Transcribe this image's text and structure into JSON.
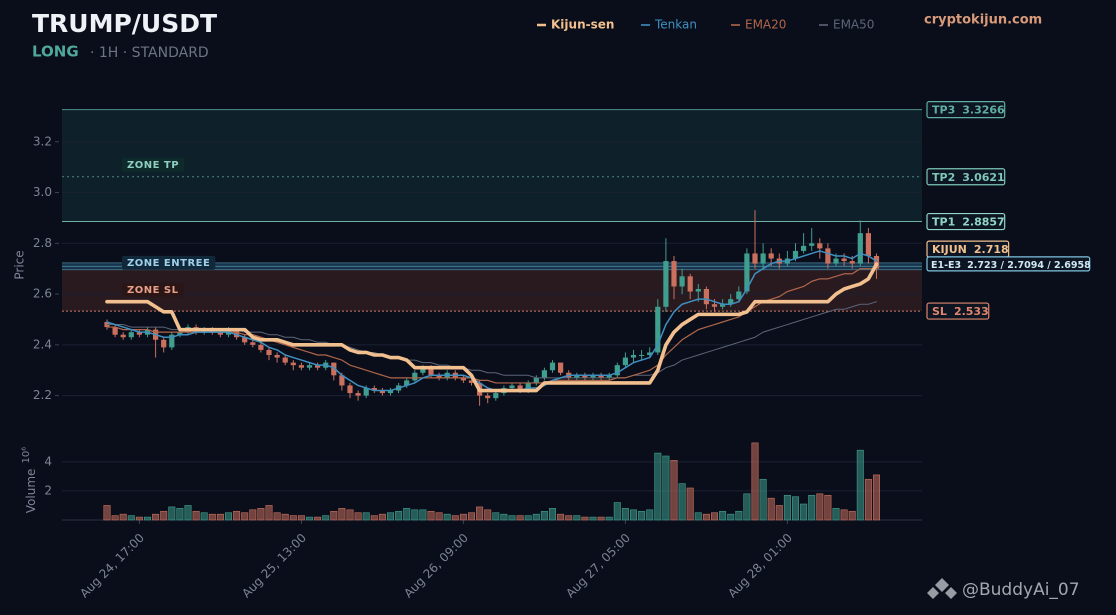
{
  "chart_data": {
    "type": "candlestick",
    "title": "TRUMP/USDT",
    "side": "LONG",
    "meta": "· 1H · STANDARD",
    "source": "cryptokijun.com",
    "watermark": "@BuddyAi_07",
    "y_label": "Price",
    "ylim": [
      2.1,
      3.4
    ],
    "yticks": [
      2.2,
      2.4,
      2.6,
      2.8,
      {
        "value": 3,
        "label": "3.0"
      },
      3.2
    ],
    "grid": true,
    "up_color": "#3f9e8e",
    "down_color": "#c9705e",
    "categories": [
      null,
      null,
      null,
      null,
      "Aug 24, 17:00",
      null,
      null,
      null,
      null,
      null,
      null,
      null,
      null,
      null,
      null,
      null,
      null,
      null,
      null,
      null,
      null,
      null,
      null,
      null,
      "Aug 25, 13:00",
      null,
      null,
      null,
      null,
      null,
      null,
      null,
      null,
      null,
      null,
      null,
      null,
      null,
      null,
      null,
      null,
      null,
      null,
      null,
      "Aug 26, 09:00",
      null,
      null,
      null,
      null,
      null,
      null,
      null,
      null,
      null,
      null,
      null,
      null,
      null,
      null,
      null,
      null,
      null,
      null,
      null,
      "Aug 27, 05:00",
      null,
      null,
      null,
      null,
      null,
      null,
      null,
      null,
      null,
      null,
      null,
      null,
      null,
      null,
      null,
      null,
      null,
      null,
      null,
      "Aug 28, 01:00",
      null,
      null,
      null,
      null,
      null,
      null,
      null,
      null,
      null,
      null,
      null
    ],
    "candles": [
      [
        2.49,
        2.5,
        2.46,
        2.47
      ],
      [
        2.47,
        2.48,
        2.43,
        2.44
      ],
      [
        2.44,
        2.45,
        2.42,
        2.43
      ],
      [
        2.43,
        2.46,
        2.42,
        2.45
      ],
      [
        2.45,
        2.46,
        2.43,
        2.44
      ],
      [
        2.44,
        2.47,
        2.43,
        2.46
      ],
      [
        2.46,
        2.47,
        2.35,
        2.42
      ],
      [
        2.42,
        2.43,
        2.37,
        2.39
      ],
      [
        2.39,
        2.45,
        2.38,
        2.44
      ],
      [
        2.44,
        2.46,
        2.43,
        2.45
      ],
      [
        2.45,
        2.48,
        2.44,
        2.47
      ],
      [
        2.47,
        2.48,
        2.44,
        2.45
      ],
      [
        2.45,
        2.47,
        2.44,
        2.46
      ],
      [
        2.46,
        2.47,
        2.44,
        2.45
      ],
      [
        2.45,
        2.46,
        2.43,
        2.44
      ],
      [
        2.44,
        2.47,
        2.43,
        2.46
      ],
      [
        2.46,
        2.46,
        2.42,
        2.43
      ],
      [
        2.43,
        2.44,
        2.4,
        2.41
      ],
      [
        2.41,
        2.42,
        2.39,
        2.4
      ],
      [
        2.4,
        2.41,
        2.37,
        2.38
      ],
      [
        2.38,
        2.39,
        2.34,
        2.36
      ],
      [
        2.36,
        2.37,
        2.33,
        2.35
      ],
      [
        2.35,
        2.36,
        2.32,
        2.33
      ],
      [
        2.33,
        2.34,
        2.3,
        2.32
      ],
      [
        2.32,
        2.33,
        2.3,
        2.31
      ],
      [
        2.31,
        2.33,
        2.3,
        2.32
      ],
      [
        2.32,
        2.33,
        2.3,
        2.31
      ],
      [
        2.31,
        2.34,
        2.3,
        2.33
      ],
      [
        2.33,
        2.33,
        2.26,
        2.28
      ],
      [
        2.28,
        2.29,
        2.22,
        2.24
      ],
      [
        2.24,
        2.25,
        2.19,
        2.21
      ],
      [
        2.21,
        2.22,
        2.18,
        2.2
      ],
      [
        2.2,
        2.24,
        2.19,
        2.23
      ],
      [
        2.23,
        2.24,
        2.21,
        2.22
      ],
      [
        2.22,
        2.23,
        2.2,
        2.21
      ],
      [
        2.21,
        2.23,
        2.2,
        2.22
      ],
      [
        2.22,
        2.25,
        2.21,
        2.24
      ],
      [
        2.24,
        2.27,
        2.23,
        2.26
      ],
      [
        2.26,
        2.3,
        2.25,
        2.29
      ],
      [
        2.29,
        2.32,
        2.28,
        2.31
      ],
      [
        2.31,
        2.32,
        2.27,
        2.28
      ],
      [
        2.28,
        2.29,
        2.26,
        2.27
      ],
      [
        2.27,
        2.3,
        2.26,
        2.29
      ],
      [
        2.29,
        2.3,
        2.26,
        2.27
      ],
      [
        2.27,
        2.28,
        2.25,
        2.26
      ],
      [
        2.26,
        2.27,
        2.24,
        2.25
      ],
      [
        2.25,
        2.26,
        2.16,
        2.2
      ],
      [
        2.2,
        2.21,
        2.17,
        2.19
      ],
      [
        2.19,
        2.22,
        2.18,
        2.21
      ],
      [
        2.21,
        2.24,
        2.2,
        2.23
      ],
      [
        2.23,
        2.25,
        2.22,
        2.24
      ],
      [
        2.24,
        2.25,
        2.21,
        2.22
      ],
      [
        2.22,
        2.26,
        2.21,
        2.25
      ],
      [
        2.25,
        2.28,
        2.24,
        2.27
      ],
      [
        2.27,
        2.31,
        2.26,
        2.3
      ],
      [
        2.3,
        2.34,
        2.29,
        2.33
      ],
      [
        2.33,
        2.33,
        2.28,
        2.29
      ],
      [
        2.29,
        2.3,
        2.26,
        2.27
      ],
      [
        2.27,
        2.29,
        2.26,
        2.28
      ],
      [
        2.28,
        2.29,
        2.26,
        2.27
      ],
      [
        2.27,
        2.29,
        2.26,
        2.28
      ],
      [
        2.28,
        2.29,
        2.26,
        2.27
      ],
      [
        2.27,
        2.29,
        2.26,
        2.28
      ],
      [
        2.28,
        2.33,
        2.27,
        2.32
      ],
      [
        2.32,
        2.37,
        2.31,
        2.35
      ],
      [
        2.35,
        2.38,
        2.33,
        2.36
      ],
      [
        2.36,
        2.38,
        2.34,
        2.36
      ],
      [
        2.36,
        2.39,
        2.35,
        2.37
      ],
      [
        2.37,
        2.58,
        2.36,
        2.55
      ],
      [
        2.55,
        2.82,
        2.53,
        2.73
      ],
      [
        2.73,
        2.75,
        2.58,
        2.63
      ],
      [
        2.63,
        2.7,
        2.6,
        2.67
      ],
      [
        2.67,
        2.68,
        2.58,
        2.61
      ],
      [
        2.61,
        2.64,
        2.57,
        2.62
      ],
      [
        2.62,
        2.63,
        2.54,
        2.56
      ],
      [
        2.56,
        2.58,
        2.53,
        2.55
      ],
      [
        2.55,
        2.58,
        2.54,
        2.56
      ],
      [
        2.56,
        2.6,
        2.55,
        2.58
      ],
      [
        2.58,
        2.63,
        2.57,
        2.61
      ],
      [
        2.61,
        2.78,
        2.6,
        2.76
      ],
      [
        2.76,
        2.93,
        2.7,
        2.72
      ],
      [
        2.72,
        2.8,
        2.7,
        2.76
      ],
      [
        2.76,
        2.78,
        2.71,
        2.74
      ],
      [
        2.74,
        2.76,
        2.7,
        2.72
      ],
      [
        2.72,
        2.77,
        2.71,
        2.74
      ],
      [
        2.74,
        2.8,
        2.73,
        2.77
      ],
      [
        2.77,
        2.84,
        2.76,
        2.79
      ],
      [
        2.79,
        2.86,
        2.77,
        2.8
      ],
      [
        2.8,
        2.82,
        2.74,
        2.78
      ],
      [
        2.78,
        2.8,
        2.7,
        2.72
      ],
      [
        2.72,
        2.76,
        2.71,
        2.74
      ],
      [
        2.74,
        2.76,
        2.71,
        2.73
      ],
      [
        2.73,
        2.75,
        2.7,
        2.72
      ],
      [
        2.72,
        2.89,
        2.71,
        2.84
      ],
      [
        2.84,
        2.86,
        2.72,
        2.75
      ],
      [
        2.75,
        2.76,
        2.66,
        2.7
      ]
    ],
    "series": [
      {
        "name": "Kijun-sen",
        "color": "#f2c08f",
        "values": [
          2.57,
          2.57,
          2.57,
          2.57,
          2.57,
          2.57,
          2.55,
          2.53,
          2.53,
          2.46,
          2.46,
          2.46,
          2.46,
          2.46,
          2.46,
          2.46,
          2.46,
          2.46,
          2.43,
          2.42,
          2.42,
          2.42,
          2.41,
          2.4,
          2.4,
          2.4,
          2.4,
          2.4,
          2.4,
          2.4,
          2.38,
          2.37,
          2.37,
          2.36,
          2.36,
          2.35,
          2.35,
          2.34,
          2.31,
          2.31,
          2.31,
          2.31,
          2.31,
          2.31,
          2.31,
          2.28,
          2.22,
          2.22,
          2.22,
          2.22,
          2.22,
          2.22,
          2.22,
          2.22,
          2.25,
          2.25,
          2.25,
          2.25,
          2.25,
          2.25,
          2.25,
          2.25,
          2.25,
          2.25,
          2.25,
          2.25,
          2.25,
          2.25,
          2.3,
          2.4,
          2.45,
          2.48,
          2.5,
          2.52,
          2.52,
          2.52,
          2.52,
          2.52,
          2.52,
          2.53,
          2.57,
          2.57,
          2.57,
          2.57,
          2.57,
          2.57,
          2.57,
          2.57,
          2.57,
          2.57,
          2.6,
          2.62,
          2.63,
          2.64,
          2.66,
          2.718
        ]
      },
      {
        "name": "Tenkan",
        "color": "#3f8fc0",
        "values": [
          2.49,
          2.48,
          2.47,
          2.46,
          2.45,
          2.45,
          2.44,
          2.43,
          2.43,
          2.44,
          2.44,
          2.45,
          2.45,
          2.45,
          2.45,
          2.45,
          2.44,
          2.43,
          2.42,
          2.41,
          2.39,
          2.38,
          2.36,
          2.35,
          2.34,
          2.33,
          2.32,
          2.32,
          2.31,
          2.28,
          2.26,
          2.24,
          2.23,
          2.22,
          2.22,
          2.22,
          2.23,
          2.24,
          2.25,
          2.27,
          2.28,
          2.28,
          2.28,
          2.28,
          2.28,
          2.27,
          2.25,
          2.23,
          2.22,
          2.22,
          2.22,
          2.22,
          2.23,
          2.23,
          2.24,
          2.26,
          2.27,
          2.28,
          2.28,
          2.28,
          2.28,
          2.28,
          2.28,
          2.29,
          2.31,
          2.33,
          2.34,
          2.35,
          2.4,
          2.48,
          2.53,
          2.56,
          2.57,
          2.58,
          2.58,
          2.57,
          2.56,
          2.56,
          2.57,
          2.62,
          2.68,
          2.7,
          2.72,
          2.73,
          2.73,
          2.74,
          2.75,
          2.76,
          2.77,
          2.76,
          2.75,
          2.75,
          2.74,
          2.76,
          2.75,
          2.73
        ]
      },
      {
        "name": "EMA20",
        "color": "#b0664a",
        "values": [
          2.47,
          2.47,
          2.46,
          2.46,
          2.46,
          2.46,
          2.45,
          2.45,
          2.45,
          2.45,
          2.45,
          2.45,
          2.45,
          2.45,
          2.45,
          2.45,
          2.45,
          2.44,
          2.44,
          2.43,
          2.42,
          2.41,
          2.4,
          2.39,
          2.38,
          2.37,
          2.36,
          2.36,
          2.35,
          2.34,
          2.32,
          2.31,
          2.3,
          2.29,
          2.28,
          2.27,
          2.27,
          2.27,
          2.27,
          2.27,
          2.27,
          2.27,
          2.27,
          2.27,
          2.27,
          2.27,
          2.26,
          2.26,
          2.25,
          2.25,
          2.25,
          2.25,
          2.25,
          2.25,
          2.25,
          2.26,
          2.26,
          2.26,
          2.26,
          2.26,
          2.26,
          2.26,
          2.26,
          2.27,
          2.27,
          2.28,
          2.29,
          2.3,
          2.32,
          2.36,
          2.39,
          2.42,
          2.44,
          2.46,
          2.47,
          2.48,
          2.49,
          2.5,
          2.51,
          2.53,
          2.55,
          2.57,
          2.58,
          2.59,
          2.61,
          2.62,
          2.63,
          2.65,
          2.66,
          2.66,
          2.67,
          2.68,
          2.68,
          2.7,
          2.7,
          2.7
        ]
      },
      {
        "name": "EMA50",
        "color": "#5d6578",
        "values": [
          2.48,
          2.48,
          2.48,
          2.47,
          2.47,
          2.47,
          2.47,
          2.47,
          2.46,
          2.46,
          2.46,
          2.46,
          2.46,
          2.46,
          2.46,
          2.46,
          2.46,
          2.45,
          2.45,
          2.45,
          2.44,
          2.44,
          2.43,
          2.43,
          2.42,
          2.42,
          2.41,
          2.41,
          2.4,
          2.4,
          2.39,
          2.38,
          2.37,
          2.37,
          2.36,
          2.35,
          2.35,
          2.34,
          2.34,
          2.33,
          2.33,
          2.32,
          2.32,
          2.31,
          2.31,
          2.3,
          2.3,
          2.29,
          2.29,
          2.28,
          2.28,
          2.28,
          2.28,
          2.27,
          2.27,
          2.27,
          2.27,
          2.27,
          2.27,
          2.27,
          2.27,
          2.27,
          2.27,
          2.27,
          2.27,
          2.28,
          2.28,
          2.28,
          2.29,
          2.31,
          2.32,
          2.34,
          2.35,
          2.36,
          2.37,
          2.38,
          2.39,
          2.4,
          2.41,
          2.42,
          2.43,
          2.45,
          2.46,
          2.47,
          2.48,
          2.49,
          2.5,
          2.51,
          2.52,
          2.53,
          2.54,
          2.54,
          2.55,
          2.56,
          2.56,
          2.57
        ]
      }
    ],
    "volume": {
      "label": "Volume",
      "unit": "10⁶",
      "ylim": [
        0,
        5.5
      ],
      "yticks": [
        2,
        4
      ],
      "values": [
        1.0,
        0.3,
        0.4,
        0.3,
        0.2,
        0.2,
        0.4,
        0.6,
        0.9,
        0.8,
        1.0,
        0.6,
        0.5,
        0.4,
        0.4,
        0.5,
        0.6,
        0.5,
        0.7,
        0.8,
        1.0,
        0.5,
        0.4,
        0.3,
        0.3,
        0.2,
        0.2,
        0.3,
        0.6,
        0.8,
        0.7,
        0.5,
        0.5,
        0.3,
        0.4,
        0.5,
        0.6,
        0.8,
        0.7,
        0.7,
        0.6,
        0.5,
        0.4,
        0.3,
        0.4,
        0.5,
        0.9,
        0.7,
        0.5,
        0.4,
        0.3,
        0.3,
        0.3,
        0.4,
        0.6,
        0.8,
        0.4,
        0.3,
        0.3,
        0.2,
        0.2,
        0.2,
        0.2,
        1.2,
        0.8,
        0.7,
        0.6,
        0.7,
        4.6,
        4.4,
        4.1,
        2.5,
        2.2,
        0.5,
        0.4,
        0.5,
        0.6,
        0.4,
        0.6,
        1.8,
        5.3,
        2.8,
        1.5,
        1.0,
        1.7,
        1.6,
        1.1,
        1.7,
        1.8,
        1.7,
        0.8,
        0.7,
        0.6,
        4.8,
        2.8,
        3.1
      ]
    },
    "levels": [
      {
        "name": "TP3",
        "value": 3.3266,
        "color": "#5fae9f"
      },
      {
        "name": "TP2",
        "value": 3.0621,
        "color": "#7cc7b7"
      },
      {
        "name": "TP1",
        "value": 2.8857,
        "color": "#8fd6c6"
      },
      {
        "name": "KIJUN",
        "value": 2.718,
        "color": "#f2c08f"
      },
      {
        "name": "SL",
        "value": 2.533,
        "color": "#e0866c"
      }
    ],
    "entry": {
      "name": "E1-E3",
      "values": [
        2.723,
        2.7094,
        2.6958
      ],
      "label": "2.723 / 2.7094 / 2.6958",
      "color": "#7fc4e0"
    },
    "zones": [
      "ZONE TP",
      "ZONE ENTREE",
      "ZONE SL"
    ]
  }
}
